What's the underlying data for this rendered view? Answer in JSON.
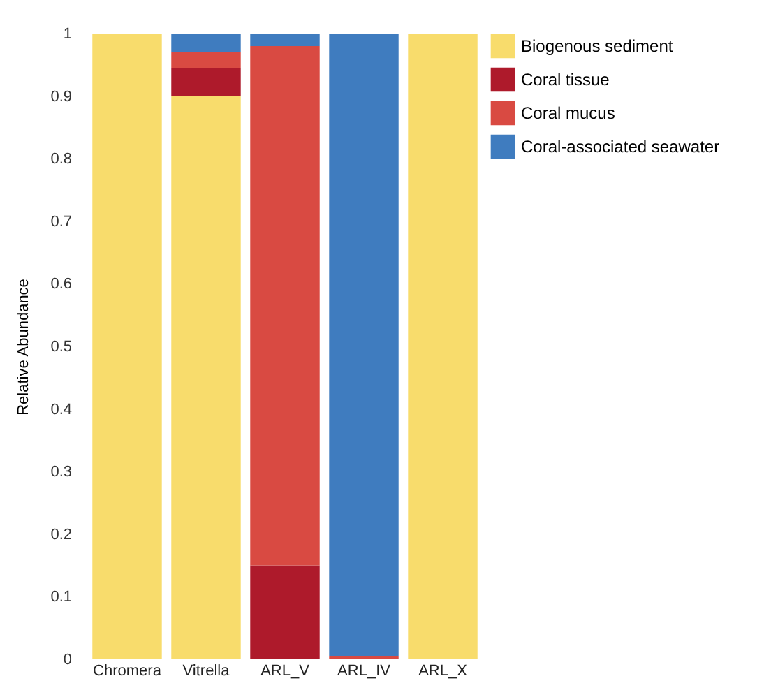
{
  "chart_data": {
    "type": "bar",
    "stacked": true,
    "ylabel": "Relative Abundance",
    "categories": [
      "Chromera",
      "Vitrella",
      "ARL_V",
      "ARL_IV",
      "ARL_X"
    ],
    "series": [
      {
        "name": "Biogenous sediment",
        "color": "#f8dc6c",
        "values": [
          1,
          0.9,
          0,
          0,
          1
        ]
      },
      {
        "name": "Coral tissue",
        "color": "#ae1a2b",
        "values": [
          0,
          0.045,
          0.15,
          0,
          0
        ]
      },
      {
        "name": "Coral mucus",
        "color": "#d94a42",
        "values": [
          0,
          0.025,
          0.83,
          0.005,
          0
        ]
      },
      {
        "name": "Coral-associated seawater",
        "color": "#3f7cbf",
        "values": [
          0,
          0.03,
          0.02,
          0.995,
          0
        ]
      }
    ],
    "ylim": [
      0,
      1
    ],
    "yticks": [
      0,
      0.1,
      0.2,
      0.3,
      0.4,
      0.5,
      0.6,
      0.7,
      0.8,
      0.9,
      1
    ],
    "grid": false,
    "legend": "top right"
  }
}
